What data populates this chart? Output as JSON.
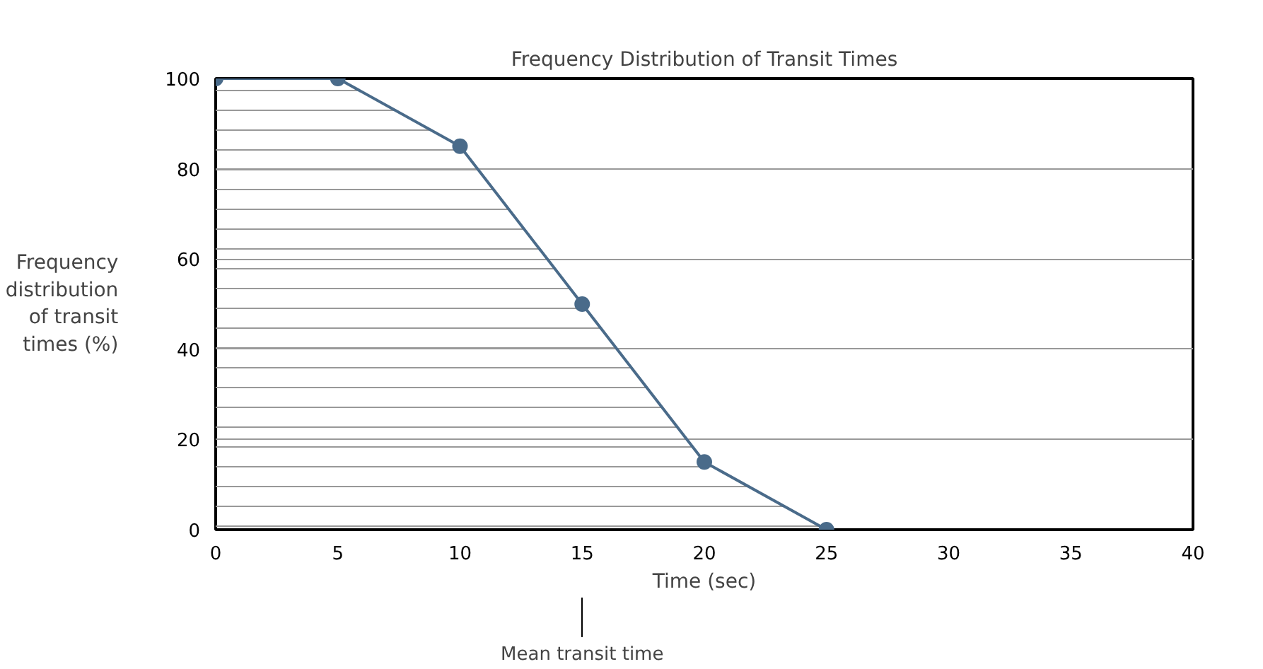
{
  "chart_data": {
    "type": "area",
    "title": "Frequency Distribution of Transit Times",
    "xlabel": "Time (sec)",
    "ylabel": "Frequency distribution of transit times (%)",
    "x": [
      0,
      5,
      10,
      15,
      20,
      25
    ],
    "series": [
      {
        "color": "#4a6b8a",
        "values": [
          100,
          100,
          85,
          50,
          15,
          0
        ]
      }
    ],
    "xlim": [
      0,
      40
    ],
    "xticks": [
      0,
      5,
      10,
      15,
      20,
      25,
      30,
      35,
      40
    ],
    "ylim": [
      0,
      100
    ],
    "yticks": [
      0,
      20,
      40,
      60,
      80,
      100
    ],
    "grid": "y",
    "marker": "circle",
    "line_style": "solid",
    "annotations": [
      {
        "text": "Mean transit time",
        "x": 15
      }
    ]
  }
}
